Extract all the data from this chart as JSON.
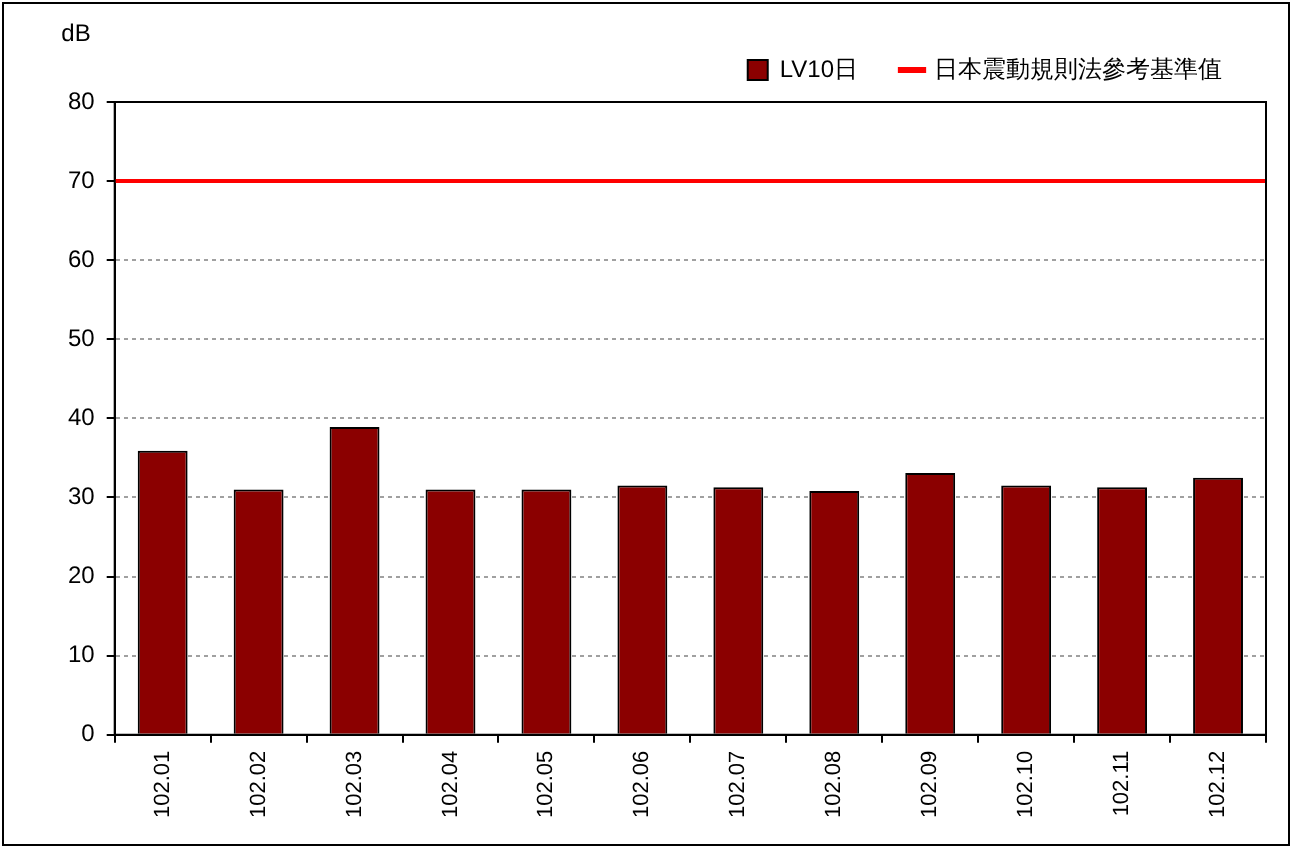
{
  "chart_data": {
    "type": "bar",
    "ylabel": "dB",
    "categories": [
      "102.01",
      "102.02",
      "102.03",
      "102.04",
      "102.05",
      "102.06",
      "102.07",
      "102.08",
      "102.09",
      "102.10",
      "102.11",
      "102.12"
    ],
    "series": [
      {
        "name": "LV10日",
        "color": "#8b0000",
        "values": [
          35.9,
          31.0,
          38.9,
          31.0,
          31.0,
          31.5,
          31.3,
          30.8,
          33.1,
          31.5,
          31.3,
          32.5
        ]
      }
    ],
    "ylim": [
      0,
      80
    ],
    "yticks": [
      0,
      10,
      20,
      30,
      40,
      50,
      60,
      70,
      80
    ],
    "grid": "y",
    "legend": "top right",
    "ref_lines": [
      {
        "axis": "y",
        "value": 70,
        "label": "日本震動規則法參考基準值",
        "color": "#ff0000"
      }
    ]
  }
}
